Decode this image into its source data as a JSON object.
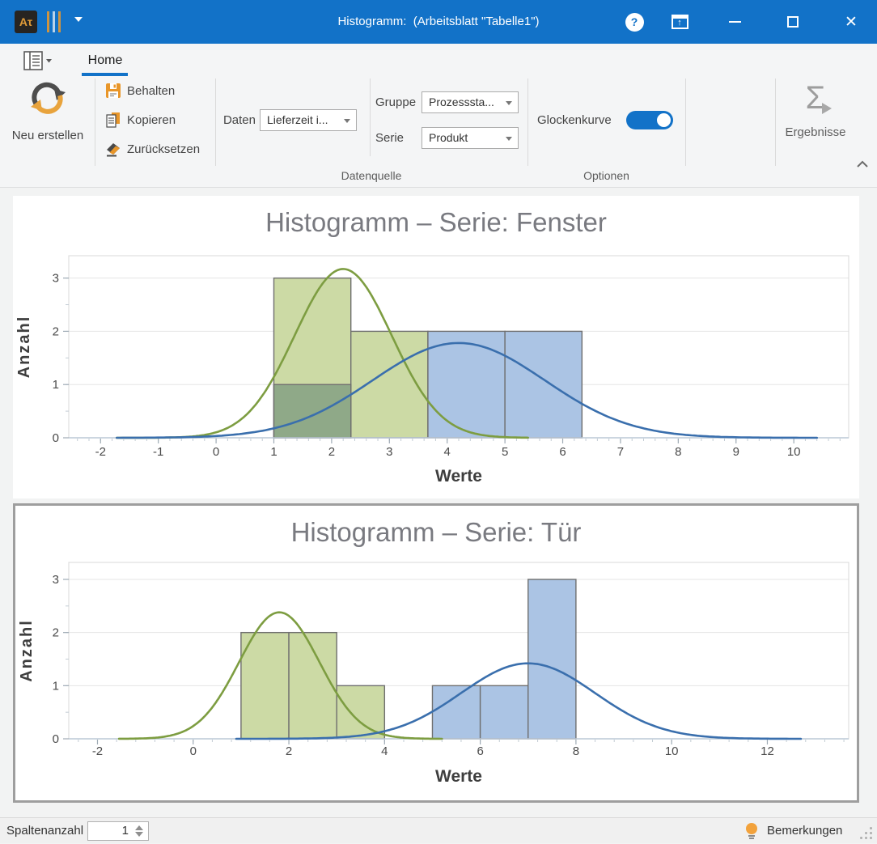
{
  "titlebar": {
    "title": "Histogramm:  (Arbeitsblatt \"Tabelle1\")",
    "app_logo_text": "Aτ"
  },
  "ribbon": {
    "tab_home": "Home",
    "neu_erstellen": "Neu erstellen",
    "behalten": "Behalten",
    "kopieren": "Kopieren",
    "zuruecksetzen": "Zurücksetzen",
    "daten_label": "Daten",
    "daten_value": "Lieferzeit i...",
    "gruppe_label": "Gruppe",
    "gruppe_value": "Prozesssta...",
    "serie_label": "Serie",
    "serie_value": "Produkt",
    "datenquelle_group": "Datenquelle",
    "glockenkurve_label": "Glockenkurve",
    "glockenkurve_on": true,
    "optionen_group": "Optionen",
    "ergebnisse": "Ergebnisse"
  },
  "statusbar": {
    "spaltenanzahl_label": "Spaltenanzahl",
    "spaltenanzahl_value": "1",
    "bemerkungen": "Bemerkungen"
  },
  "colors": {
    "titlebar": "#1272c8",
    "accent": "#1272c8",
    "green_fill": "#ccdaa5",
    "green_line": "#7d9d41",
    "blue_fill": "#abc4e4",
    "blue_line": "#3a6fad",
    "overlap_fill": "#8fa988",
    "bar_stroke": "#6f6f6f",
    "grid": "#e5e5e5",
    "plot_border": "#d8d8d8",
    "axis_line": "#bcc9d6",
    "tick_major": "#9fabb5",
    "tick_minor": "#c3ccd4",
    "tick_label": "#4a4a4a",
    "axis_label": "#3e3e3e",
    "chart_title": "#797a80"
  },
  "chart_data": [
    {
      "type": "histogram",
      "title": "Histogramm – Serie: Fenster",
      "xlabel": "Werte",
      "ylabel": "Anzahl",
      "xlim": [
        -2.55,
        10.95
      ],
      "ylim": [
        0,
        3.42
      ],
      "xticks": [
        -2,
        -1,
        0,
        1,
        2,
        3,
        4,
        5,
        6,
        7,
        8,
        9,
        10
      ],
      "yticks": [
        0,
        1,
        2,
        3
      ],
      "x_minor_step": 0.2,
      "y_minor_step": 0.5,
      "grid": true,
      "selected": false,
      "series": [
        {
          "color_key": "green",
          "bins": [
            {
              "x0": 1,
              "x1": 2.3333,
              "count": 3
            },
            {
              "x0": 2.3333,
              "x1": 3.6667,
              "count": 2
            }
          ]
        },
        {
          "color_key": "blue",
          "bins": [
            {
              "x0": 1,
              "x1": 2.3333,
              "count": 1
            },
            {
              "x0": 3.6667,
              "x1": 5,
              "count": 2
            },
            {
              "x0": 5,
              "x1": 6.3333,
              "count": 2
            }
          ]
        }
      ],
      "curves": [
        {
          "color_key": "green",
          "mean": 2.2,
          "sd": 0.84,
          "peak": 3.17,
          "range": [
            -1.72,
            5.4
          ]
        },
        {
          "color_key": "blue",
          "mean": 4.2,
          "sd": 1.49,
          "peak": 1.78,
          "range": [
            -1.72,
            10.4
          ]
        }
      ]
    },
    {
      "type": "histogram",
      "title": "Histogramm – Serie: Tür",
      "xlabel": "Werte",
      "ylabel": "Anzahl",
      "xlim": [
        -2.6,
        13.7
      ],
      "ylim": [
        0,
        3.32
      ],
      "xticks": [
        -2,
        0,
        2,
        4,
        6,
        8,
        10,
        12
      ],
      "yticks": [
        0,
        1,
        2,
        3
      ],
      "x_minor_step": 0.4,
      "y_minor_step": 0.5,
      "grid": true,
      "selected": true,
      "series": [
        {
          "color_key": "green",
          "bins": [
            {
              "x0": 1,
              "x1": 2,
              "count": 2
            },
            {
              "x0": 2,
              "x1": 3,
              "count": 2
            },
            {
              "x0": 3,
              "x1": 4,
              "count": 1
            }
          ]
        },
        {
          "color_key": "blue",
          "bins": [
            {
              "x0": 5,
              "x1": 6,
              "count": 1
            },
            {
              "x0": 6,
              "x1": 7,
              "count": 1
            },
            {
              "x0": 7,
              "x1": 8,
              "count": 3
            }
          ]
        }
      ],
      "curves": [
        {
          "color_key": "green",
          "mean": 1.8,
          "sd": 0.84,
          "peak": 2.38,
          "range": [
            -1.55,
            5.2
          ]
        },
        {
          "color_key": "blue",
          "mean": 7.0,
          "sd": 1.4,
          "peak": 1.42,
          "range": [
            0.9,
            12.7
          ]
        }
      ]
    }
  ]
}
